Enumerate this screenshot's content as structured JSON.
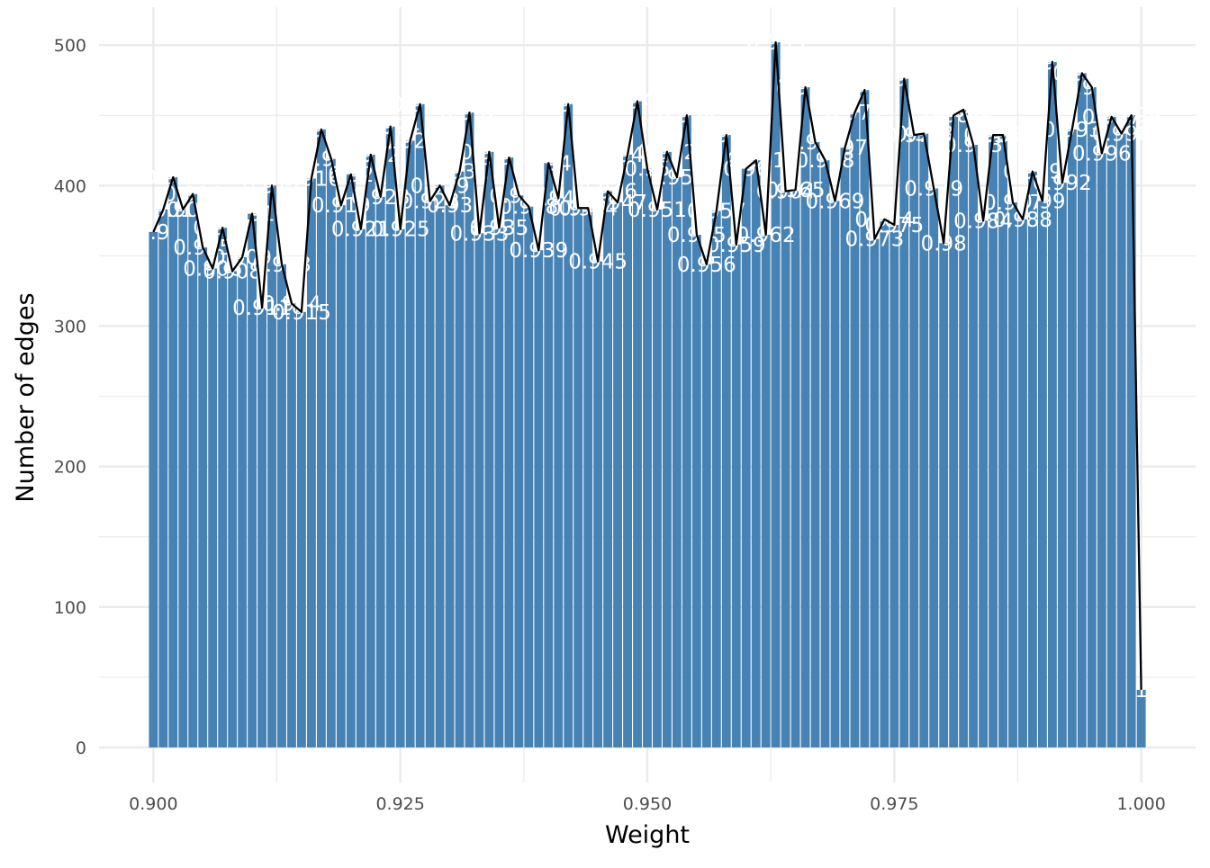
{
  "chart_data": {
    "type": "bar",
    "title": "",
    "xlabel": "Weight",
    "ylabel": "Number of edges",
    "xlim": [
      0.8945,
      1.0055
    ],
    "ylim": [
      -25,
      527
    ],
    "x_ticks": [
      0.9,
      0.925,
      0.95,
      0.975,
      1.0
    ],
    "x_tick_labels": [
      "0.900",
      "0.925",
      "0.950",
      "0.975",
      "1.000"
    ],
    "y_ticks": [
      0,
      100,
      200,
      300,
      400,
      500
    ],
    "y_tick_labels": [
      "0",
      "100",
      "200",
      "300",
      "400",
      "500"
    ],
    "grid": true,
    "overlay_line": true,
    "colors": {
      "bar": "#4682b4",
      "line": "#000000",
      "label": "#ffffff",
      "grid": "#ebebeb"
    },
    "x": [
      0.9,
      0.901,
      0.902,
      0.903,
      0.904,
      0.905,
      0.906,
      0.907,
      0.908,
      0.909,
      0.91,
      0.911,
      0.912,
      0.913,
      0.914,
      0.915,
      0.916,
      0.917,
      0.918,
      0.919,
      0.92,
      0.921,
      0.922,
      0.923,
      0.924,
      0.925,
      0.926,
      0.927,
      0.928,
      0.929,
      0.93,
      0.931,
      0.932,
      0.933,
      0.934,
      0.935,
      0.936,
      0.937,
      0.938,
      0.939,
      0.94,
      0.941,
      0.942,
      0.943,
      0.944,
      0.945,
      0.946,
      0.947,
      0.948,
      0.949,
      0.95,
      0.951,
      0.952,
      0.953,
      0.954,
      0.955,
      0.956,
      0.957,
      0.958,
      0.959,
      0.96,
      0.961,
      0.962,
      0.963,
      0.964,
      0.965,
      0.966,
      0.967,
      0.968,
      0.969,
      0.97,
      0.971,
      0.972,
      0.973,
      0.974,
      0.975,
      0.976,
      0.977,
      0.978,
      0.979,
      0.98,
      0.981,
      0.982,
      0.983,
      0.984,
      0.985,
      0.986,
      0.987,
      0.988,
      0.989,
      0.99,
      0.991,
      0.992,
      0.993,
      0.994,
      0.995,
      0.996,
      0.997,
      0.998,
      0.999,
      1.0
    ],
    "values": [
      367,
      383,
      406,
      383,
      394,
      356,
      341,
      370,
      339,
      349,
      380,
      313,
      400,
      344,
      316,
      310,
      405,
      440,
      419,
      386,
      408,
      369,
      422,
      392,
      442,
      369,
      432,
      458,
      389,
      400,
      386,
      410,
      452,
      366,
      424,
      370,
      420,
      393,
      385,
      354,
      416,
      391,
      458,
      384,
      384,
      346,
      396,
      388,
      422,
      460,
      412,
      383,
      424,
      406,
      450,
      365,
      344,
      382,
      436,
      358,
      412,
      418,
      365,
      502,
      396,
      397,
      470,
      431,
      418,
      389,
      427,
      452,
      468,
      362,
      376,
      372,
      476,
      436,
      437,
      398,
      359,
      450,
      454,
      429,
      375,
      436,
      436,
      388,
      376,
      410,
      389,
      488,
      402,
      440,
      480,
      470,
      423,
      449,
      437,
      450,
      41
    ],
    "labels": [
      "0.9",
      "0.901",
      "0.902",
      "0.903",
      "0.904",
      "0.905",
      "0.906",
      "0.907",
      "0.908",
      "0.909",
      "0.91",
      "0.911",
      "0.912",
      "0.913",
      "0.914",
      "0.915",
      "0.916",
      "0.917",
      "0.918",
      "0.919",
      "0.92",
      "0.921",
      "0.922",
      "0.923",
      "0.924",
      "0.925",
      "0.926",
      "0.927",
      "0.928",
      "0.929",
      "0.93",
      "0.931",
      "0.932",
      "0.933",
      "0.934",
      "0.935",
      "0.936",
      "0.937",
      "0.938",
      "0.939",
      "0.94",
      "0.941",
      "0.942",
      "0.943",
      "0.944",
      "0.945",
      "0.946",
      "0.947",
      "0.948",
      "0.949",
      "0.95",
      "0.951",
      "0.952",
      "0.953",
      "0.954",
      "0.955",
      "0.956",
      "0.957",
      "0.958",
      "0.959",
      "0.96",
      "0.961",
      "0.962",
      "0.963",
      "0.964",
      "0.965",
      "0.966",
      "0.967",
      "0.968",
      "0.969",
      "0.97",
      "0.971",
      "0.972",
      "0.973",
      "0.974",
      "0.975",
      "0.976",
      "0.977",
      "0.978",
      "0.979",
      "0.98",
      "0.981",
      "0.982",
      "0.983",
      "0.984",
      "0.985",
      "0.986",
      "0.987",
      "0.988",
      "0.989",
      "0.99",
      "0.991",
      "0.992",
      "0.993",
      "0.994",
      "0.995",
      "0.996",
      "0.997",
      "0.998",
      "0.999",
      "1"
    ]
  }
}
